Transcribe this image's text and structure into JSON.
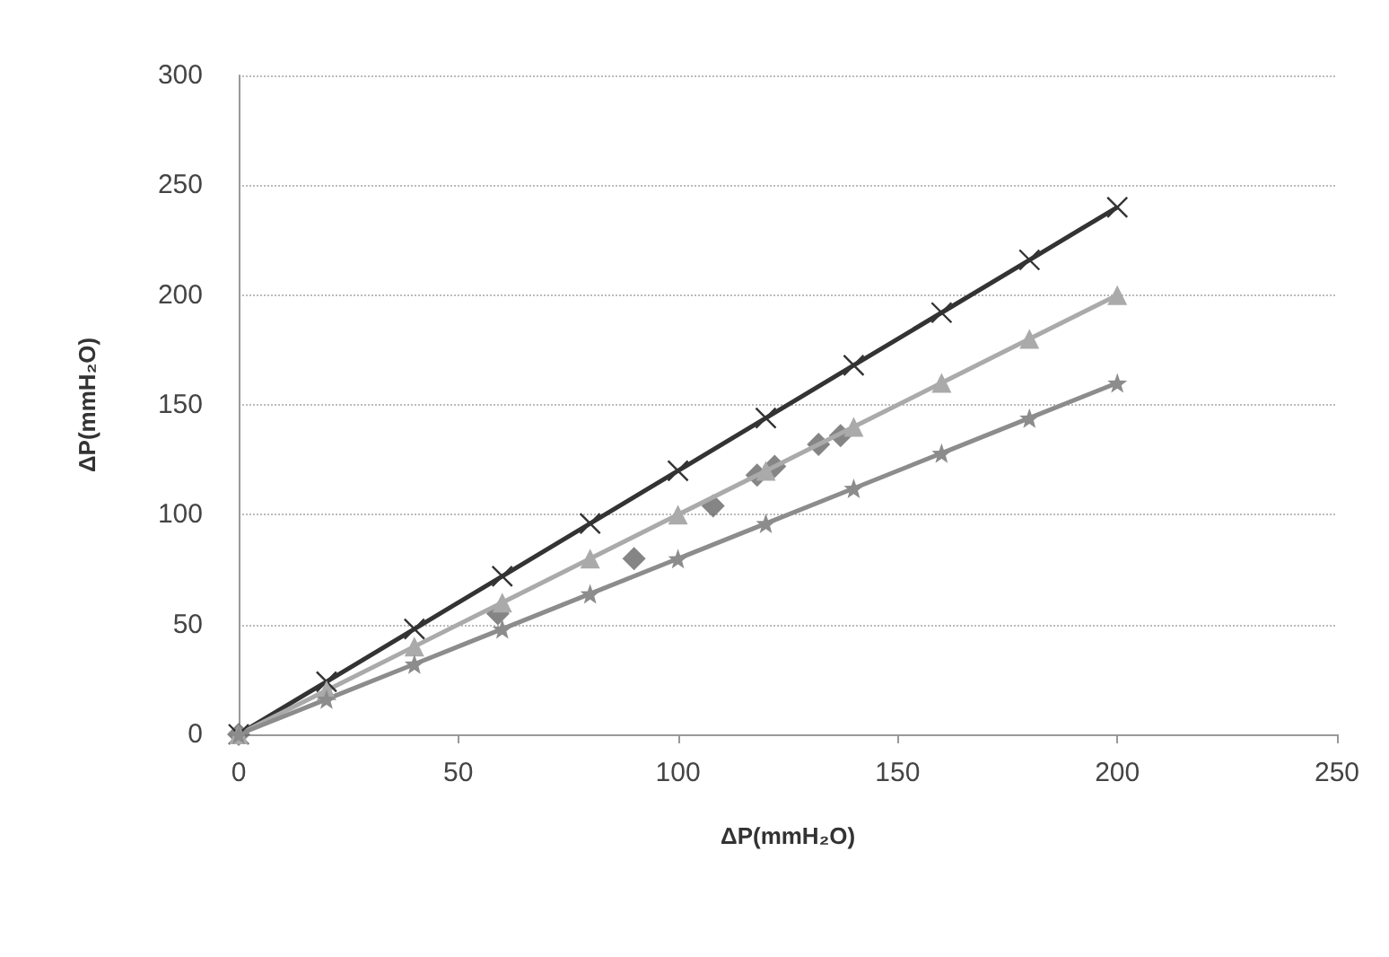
{
  "chart_data": {
    "type": "line",
    "xlabel": "ΔP(mmH₂O)",
    "ylabel": "ΔP(mmH₂O)",
    "xlim": [
      0,
      250
    ],
    "xticks": [
      0,
      50,
      100,
      150,
      200,
      250
    ],
    "ylim": [
      0,
      300
    ],
    "yticks": [
      0,
      50,
      100,
      150,
      200,
      250,
      300
    ],
    "grid": "y",
    "series": [
      {
        "type": "line",
        "color": "#333333",
        "marker": "cross",
        "x": [
          0,
          20,
          40,
          60,
          80,
          100,
          120,
          140,
          160,
          180,
          200
        ],
        "values": [
          0,
          24,
          48,
          72,
          96,
          120,
          144,
          168,
          192,
          216,
          240
        ]
      },
      {
        "type": "line",
        "color": "#aaaaaa",
        "marker": "triangle",
        "x": [
          0,
          20,
          40,
          60,
          80,
          100,
          120,
          140,
          160,
          180,
          200
        ],
        "values": [
          0,
          20,
          40,
          60,
          80,
          100,
          120,
          140,
          160,
          180,
          200
        ]
      },
      {
        "type": "line",
        "color": "#8c8c8c",
        "marker": "star",
        "x": [
          0,
          20,
          40,
          60,
          80,
          100,
          120,
          140,
          160,
          180,
          200
        ],
        "values": [
          0,
          16,
          32,
          48,
          64,
          80,
          96,
          112,
          128,
          144,
          160
        ]
      },
      {
        "type": "scatter",
        "color": "#666666",
        "marker": "diamond",
        "x": [
          0,
          59,
          90,
          108,
          118,
          122,
          132,
          137
        ],
        "values": [
          0,
          55,
          80,
          104,
          118,
          122,
          132,
          136
        ]
      }
    ]
  }
}
